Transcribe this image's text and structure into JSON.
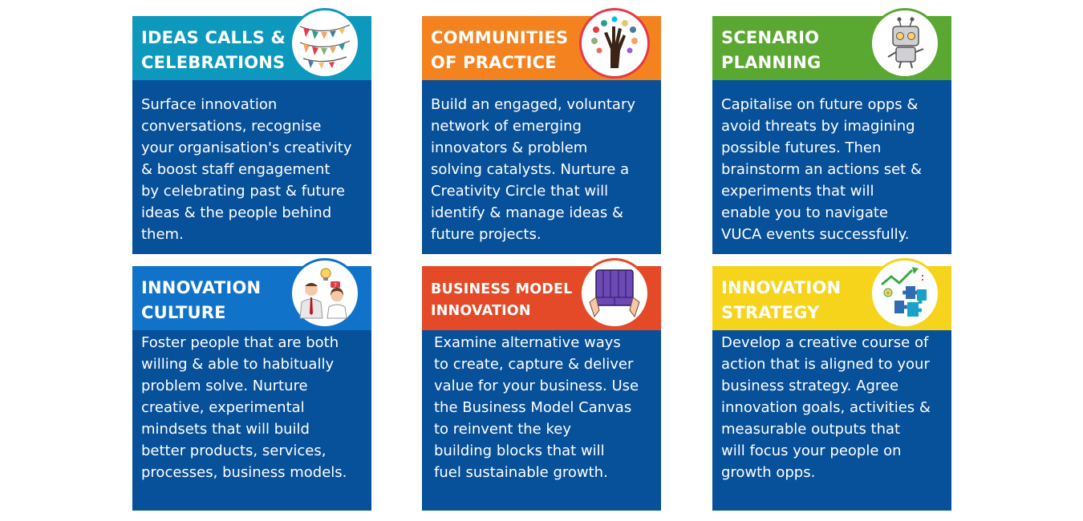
{
  "cards": [
    {
      "title_lines": [
        "IDEAS CALLS &",
        "CELEBRATIONS"
      ],
      "header_color": "#0c99bd",
      "icon": "bunting-flags-icon",
      "body_lines": [
        "Surface innovation",
        "conversations, recognise",
        "your organisation's creativity",
        "& boost staff engagement",
        "by celebrating past & future",
        "ideas & the people behind",
        "them."
      ]
    },
    {
      "title_lines": [
        "COMMUNITIES",
        "OF PRACTICE"
      ],
      "header_color": "#f3821f",
      "icon": "raised-hands-icon",
      "body_lines": [
        "Build an engaged, voluntary",
        "network of emerging",
        "innovators & problem",
        "solving catalysts. Nurture a",
        "Creativity Circle that will",
        "identify & manage ideas &",
        "future projects."
      ]
    },
    {
      "title_lines": [
        "SCENARIO",
        "PLANNING"
      ],
      "header_color": "#5aa832",
      "icon": "robot-icon",
      "body_lines": [
        "Capitalise on future opps &",
        "avoid threats by imagining",
        "possible futures. Then",
        "brainstorm an actions set &",
        "experiments that will",
        "enable you to navigate",
        "VUCA events successfully."
      ]
    },
    {
      "title_lines": [
        "INNOVATION",
        "CULTURE"
      ],
      "header_color": "#1073c9",
      "icon": "people-idea-icon",
      "body_lines": [
        "Foster people that are both",
        "willing & able to habitually",
        "problem solve. Nurture",
        "creative, experimental",
        "mindsets that will build",
        "better products, services,",
        "processes, business models."
      ]
    },
    {
      "title_lines": [
        "BUSINESS MODEL",
        "INNOVATION"
      ],
      "header_color": "#e44a27",
      "icon": "business-canvas-icon",
      "body_lines": [
        "Examine alternative ways",
        "to create, capture & deliver",
        "value for your business. Use",
        "the Business Model Canvas",
        "to reinvent the key",
        "building blocks that will",
        "fuel sustainable growth."
      ]
    },
    {
      "title_lines": [
        "INNOVATION",
        "STRATEGY"
      ],
      "header_color": "#f6d41c",
      "icon": "puzzle-growth-icon",
      "body_lines": [
        "Develop a creative course of",
        "action that is aligned to your",
        "business strategy. Agree",
        "innovation goals, activities &",
        "measurable outputs that",
        "will focus your people on",
        "growth opps."
      ]
    }
  ]
}
